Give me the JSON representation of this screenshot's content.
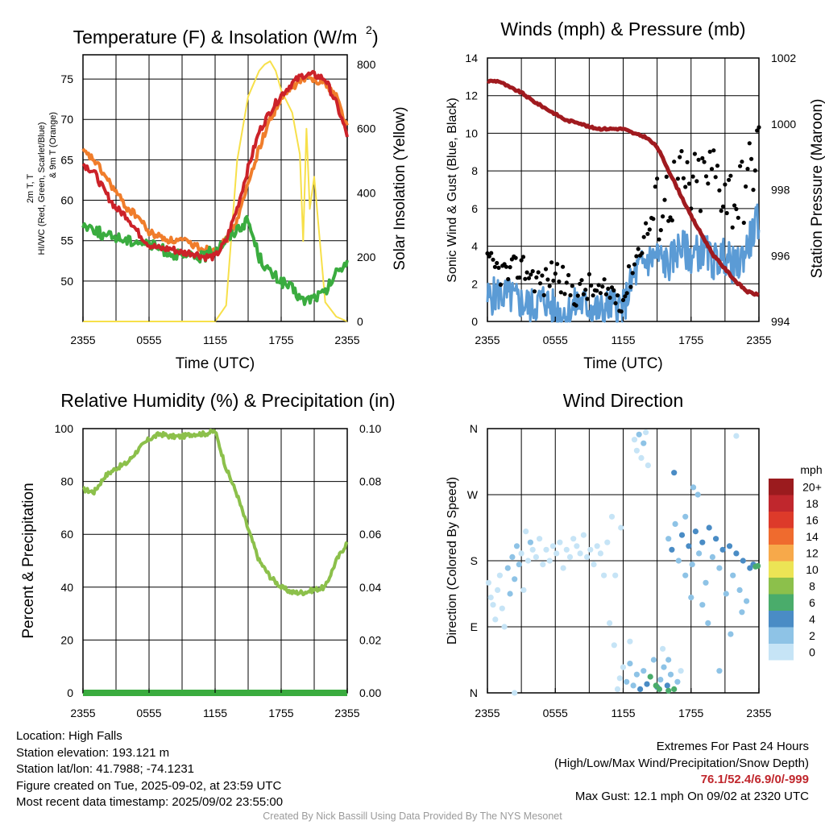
{
  "chart_data": [
    {
      "type": "line",
      "title": "Temperature (F) & Insolation (W/m²)",
      "xlabel": "Time (UTC)",
      "ylabel": "2m T, T_d, HI/WC (Red, Green, Scarlet/Blue) & 9m T (Orange)",
      "y2label": "Solar Insolation (Yellow)",
      "x_ticks": [
        "2355",
        "0555",
        "1155",
        "1755",
        "2355"
      ],
      "ylim": [
        45,
        78
      ],
      "y_ticks": [
        50,
        55,
        60,
        65,
        70,
        75
      ],
      "y2lim": [
        0,
        830
      ],
      "y2_ticks": [
        0,
        200,
        400,
        600,
        800
      ],
      "x_hours": [
        0,
        1,
        2,
        3,
        4,
        5,
        6,
        7,
        8,
        9,
        10,
        11,
        12,
        13,
        14,
        15,
        16,
        17,
        18,
        19,
        20,
        21,
        22,
        23,
        24
      ],
      "series": [
        {
          "color": "#f7e04a",
          "axis": "right",
          "x": [
            0,
            12,
            13,
            14,
            15,
            16,
            16.5,
            17,
            17.5,
            18,
            19,
            19.7,
            20,
            20.3,
            20.6,
            21,
            22,
            23,
            24
          ],
          "values": [
            0,
            0,
            50,
            500,
            700,
            780,
            800,
            810,
            780,
            720,
            650,
            520,
            250,
            600,
            350,
            450,
            60,
            15,
            0
          ]
        },
        {
          "color": "#f07d2b",
          "axis": "left",
          "values": [
            66,
            65,
            63,
            61,
            59,
            58,
            56,
            55.5,
            55,
            55,
            54.5,
            54,
            54,
            55,
            57.5,
            62,
            66.5,
            70,
            72.5,
            74,
            75,
            75,
            74.5,
            73,
            69
          ]
        },
        {
          "color": "#3aac3f",
          "axis": "left",
          "values": [
            57,
            56.5,
            55.5,
            55.5,
            55,
            55,
            54.5,
            54,
            53.5,
            53,
            53,
            53,
            54,
            55,
            56.5,
            57.5,
            53,
            51,
            50,
            49,
            47.5,
            48,
            48.5,
            51,
            52.5
          ]
        },
        {
          "color": "#cc2229",
          "axis": "left",
          "values": [
            64.5,
            63.5,
            61,
            59,
            58,
            56,
            54.5,
            54,
            54,
            53.5,
            53.5,
            53,
            53,
            55,
            59,
            64,
            68.5,
            71,
            73,
            74.5,
            75.5,
            75.5,
            75,
            72,
            68
          ]
        }
      ]
    },
    {
      "type": "line",
      "title": "Winds (mph) & Pressure (mb)",
      "xlabel": "Time (UTC)",
      "ylabel": "Sonic Wind & Gust (Blue, Black)",
      "y2label": "Station Pressure (Maroon)",
      "x_ticks": [
        "2355",
        "0555",
        "1155",
        "1755",
        "2355"
      ],
      "ylim": [
        0,
        14
      ],
      "y_ticks": [
        0,
        2,
        4,
        6,
        8,
        10,
        12,
        14
      ],
      "y2lim": [
        994,
        1002
      ],
      "y2_ticks": [
        994,
        996,
        998,
        1000,
        1002
      ],
      "x_hours": [
        0,
        1,
        2,
        3,
        4,
        5,
        6,
        7,
        8,
        9,
        10,
        11,
        12,
        13,
        14,
        15,
        16,
        17,
        18,
        19,
        20,
        21,
        22,
        23,
        24
      ],
      "series": [
        {
          "color": "#5b9bd5",
          "axis": "left",
          "values": [
            1.2,
            1.5,
            1.3,
            1.0,
            0.8,
            1.2,
            0.6,
            0.4,
            1.0,
            0.8,
            0.5,
            0.9,
            0.7,
            2.5,
            3.2,
            3.5,
            3.0,
            4.0,
            3.5,
            3.8,
            3.2,
            3.5,
            2.8,
            4.0,
            5.5
          ]
        },
        {
          "color": "#000000",
          "axis": "left",
          "kind": "points",
          "values": [
            3.0,
            2.7,
            2.5,
            3.0,
            2.4,
            2.0,
            2.8,
            1.8,
            1.5,
            1.8,
            1.4,
            1.6,
            1.2,
            3.2,
            4.8,
            6.0,
            6.8,
            7.5,
            7.0,
            7.5,
            8.0,
            7.2,
            6.5,
            7.5,
            9.5
          ]
        },
        {
          "color": "#a01a1f",
          "axis": "right",
          "values": [
            1001.3,
            1001.3,
            1001.1,
            1000.95,
            1000.7,
            1000.5,
            1000.3,
            1000.1,
            1000.05,
            999.9,
            999.85,
            999.85,
            999.85,
            999.7,
            999.6,
            999.3,
            998.6,
            997.9,
            997.2,
            996.6,
            996.0,
            995.6,
            995.2,
            994.9,
            994.8
          ]
        }
      ]
    },
    {
      "type": "line",
      "title": "Relative Humidity (%) & Precipitation (in)",
      "xlabel": "",
      "ylabel": "Percent & Precipitation",
      "x_ticks": [
        "2355",
        "0555",
        "1155",
        "1755",
        "2355"
      ],
      "ylim": [
        0,
        100
      ],
      "y_ticks": [
        0,
        20,
        40,
        60,
        80,
        100
      ],
      "y2lim": [
        0,
        0.1
      ],
      "y2_ticks": [
        "0.00",
        "0.02",
        "0.04",
        "0.06",
        "0.08",
        "0.10"
      ],
      "x_hours": [
        0,
        1,
        2,
        3,
        4,
        5,
        6,
        7,
        8,
        9,
        10,
        11,
        12,
        13,
        14,
        15,
        16,
        17,
        18,
        19,
        20,
        21,
        22,
        23,
        24
      ],
      "series": [
        {
          "color": "#8cc04b",
          "axis": "left",
          "values": [
            77,
            76,
            82,
            85,
            87,
            92,
            96,
            98,
            97,
            97,
            98,
            98,
            99,
            85,
            75,
            62,
            50,
            44,
            40,
            38,
            38,
            39,
            40,
            50,
            57
          ]
        },
        {
          "color": "#3aac3f",
          "axis": "right",
          "values": [
            0,
            0,
            0,
            0,
            0,
            0,
            0,
            0,
            0,
            0,
            0,
            0,
            0,
            0,
            0,
            0,
            0,
            0,
            0,
            0,
            0,
            0,
            0,
            0,
            0
          ]
        }
      ]
    },
    {
      "type": "scatter",
      "title": "Wind Direction",
      "ylabel": "Direction (Colored By Speed)",
      "x_ticks": [
        "2355",
        "0555",
        "1155",
        "1755",
        "2355"
      ],
      "y_ticks": [
        "N",
        "E",
        "S",
        "W",
        "N"
      ],
      "ylim": [
        0,
        360
      ],
      "legend_unit": "mph",
      "legend_labels": [
        "0",
        "2",
        "4",
        "6",
        "8",
        "10",
        "12",
        "14",
        "16",
        "18",
        "20+"
      ],
      "legend_colors": [
        "#c6e4f6",
        "#8ec3e6",
        "#4a8cc5",
        "#4aac6b",
        "#8cc04b",
        "#ece455",
        "#f7a94a",
        "#ef6b2e",
        "#dd3a2a",
        "#c0272d",
        "#9b1b1e"
      ],
      "points": [
        [
          0.1,
          150,
          1.2
        ],
        [
          0.3,
          130,
          0.8
        ],
        [
          0.5,
          120,
          1.0
        ],
        [
          0.7,
          100,
          0.8
        ],
        [
          0.9,
          140,
          1.5
        ],
        [
          1.1,
          160,
          1.2
        ],
        [
          1.3,
          115,
          1.0
        ],
        [
          1.5,
          90,
          0.6
        ],
        [
          1.8,
          170,
          2.0
        ],
        [
          2.0,
          135,
          2.5
        ],
        [
          2.2,
          185,
          3.0
        ],
        [
          2.4,
          155,
          2.5
        ],
        [
          2.6,
          200,
          3.5
        ],
        [
          2.8,
          175,
          2.2
        ],
        [
          3.0,
          190,
          1.8
        ],
        [
          3.2,
          140,
          1.2
        ],
        [
          3.4,
          220,
          1.2
        ],
        [
          3.6,
          180,
          1.5
        ],
        [
          3.8,
          205,
          2.0
        ],
        [
          4.0,
          195,
          1.0
        ],
        [
          4.3,
          185,
          1.2
        ],
        [
          4.6,
          210,
          1.4
        ],
        [
          4.9,
          175,
          1.0
        ],
        [
          5.2,
          195,
          1.6
        ],
        [
          5.5,
          180,
          1.2
        ],
        [
          5.8,
          200,
          0.8
        ],
        [
          6.1,
          190,
          1.0
        ],
        [
          6.4,
          205,
          1.2
        ],
        [
          6.7,
          170,
          1.4
        ],
        [
          7.0,
          195,
          0.9
        ],
        [
          7.3,
          185,
          1.0
        ],
        [
          7.6,
          210,
          1.3
        ],
        [
          7.9,
          200,
          1.2
        ],
        [
          8.2,
          190,
          0.8
        ],
        [
          8.5,
          215,
          1.0
        ],
        [
          8.8,
          185,
          1.2
        ],
        [
          9.1,
          195,
          0.8
        ],
        [
          9.4,
          175,
          1.5
        ],
        [
          9.7,
          200,
          1.2
        ],
        [
          10.0,
          190,
          1.0
        ],
        [
          10.3,
          160,
          0.9
        ],
        [
          10.6,
          205,
          1.2
        ],
        [
          11.0,
          240,
          0.8
        ],
        [
          11.3,
          160,
          1.0
        ],
        [
          11.8,
          225,
          0.8
        ],
        [
          2.4,
          0,
          0.6
        ],
        [
          11.5,
          5,
          0.6
        ],
        [
          11.7,
          20,
          1.0
        ],
        [
          12.0,
          35,
          1.5
        ],
        [
          12.3,
          15,
          2.0
        ],
        [
          12.6,
          40,
          2.5
        ],
        [
          12.9,
          10,
          3.0
        ],
        [
          13.2,
          25,
          3.2
        ],
        [
          13.5,
          5,
          4.2
        ],
        [
          13.8,
          30,
          3.5
        ],
        [
          14.1,
          12,
          5.5
        ],
        [
          14.4,
          22,
          6.0
        ],
        [
          14.7,
          45,
          3.2
        ],
        [
          15.0,
          8,
          4.5
        ],
        [
          15.3,
          18,
          3.0
        ],
        [
          15.6,
          35,
          2.5
        ],
        [
          15.9,
          10,
          5.0
        ],
        [
          16.2,
          25,
          3.5
        ],
        [
          16.5,
          5,
          6.5
        ],
        [
          16.8,
          15,
          2.0
        ],
        [
          17.1,
          30,
          1.5
        ],
        [
          13.0,
          345,
          1.2
        ],
        [
          13.2,
          330,
          1.5
        ],
        [
          13.4,
          352,
          2.0
        ],
        [
          13.6,
          320,
          1.8
        ],
        [
          13.8,
          340,
          2.2
        ],
        [
          14.0,
          355,
          1.0
        ],
        [
          14.2,
          310,
          1.6
        ],
        [
          17.5,
          240,
          3.0
        ],
        [
          18.2,
          280,
          2.8
        ],
        [
          18.6,
          270,
          2.0
        ],
        [
          16.5,
          300,
          4.0
        ],
        [
          22.0,
          350,
          1.0
        ],
        [
          16.0,
          210,
          3.5
        ],
        [
          16.3,
          195,
          4.2
        ],
        [
          16.6,
          230,
          2.8
        ],
        [
          16.9,
          180,
          3.8
        ],
        [
          17.2,
          215,
          4.5
        ],
        [
          17.5,
          160,
          3.0
        ],
        [
          17.8,
          200,
          4.0
        ],
        [
          18.1,
          175,
          3.5
        ],
        [
          18.4,
          220,
          4.8
        ],
        [
          18.7,
          190,
          3.2
        ],
        [
          19.0,
          205,
          4.0
        ],
        [
          19.3,
          150,
          3.6
        ],
        [
          19.6,
          225,
          4.2
        ],
        [
          19.9,
          185,
          3.8
        ],
        [
          20.2,
          210,
          4.5
        ],
        [
          20.5,
          170,
          3.0
        ],
        [
          20.8,
          195,
          4.0
        ],
        [
          21.1,
          135,
          3.2
        ],
        [
          21.4,
          200,
          4.4
        ],
        [
          21.7,
          160,
          3.6
        ],
        [
          22.0,
          190,
          4.0
        ],
        [
          22.3,
          140,
          3.2
        ],
        [
          22.6,
          180,
          4.6
        ],
        [
          22.9,
          125,
          3.0
        ],
        [
          23.2,
          170,
          5.0
        ],
        [
          23.5,
          175,
          5.5
        ],
        [
          23.7,
          172,
          6.0
        ],
        [
          23.9,
          173,
          6.2
        ],
        [
          21.5,
          80,
          2.5
        ],
        [
          19.5,
          95,
          2.0
        ],
        [
          16.0,
          45,
          3.5
        ],
        [
          20.5,
          30,
          2.0
        ],
        [
          15.5,
          60,
          1.5
        ],
        [
          18.0,
          130,
          3.0
        ],
        [
          19.0,
          120,
          3.5
        ],
        [
          22.5,
          110,
          2.5
        ],
        [
          10.8,
          95,
          1.0
        ],
        [
          11.2,
          65,
          1.2
        ],
        [
          12.6,
          70,
          1.8
        ],
        [
          14.9,
          10,
          6.5
        ],
        [
          15.2,
          5,
          6.8
        ],
        [
          16.0,
          3,
          6.0
        ]
      ]
    }
  ],
  "info_left": [
    "Location: High Falls",
    "Station elevation: 193.121 m",
    "Station lat/lon: 41.7988; -74.1231",
    "Figure created on Tue, 2025-09-02, at 23:59 UTC",
    "Most recent data timestamp: 2025/09/02 23:55:00"
  ],
  "info_right": {
    "line1": "Extremes For Past 24 Hours",
    "line2": "(High/Low/Max Wind/Precipitation/Snow Depth)",
    "values": "76.1/52.4/6.9/0/-999",
    "gust": "Max Gust: 12.1 mph On 09/02 at 2320 UTC"
  },
  "credit": "Created By Nick Bassill Using Data Provided By The NYS Mesonet"
}
